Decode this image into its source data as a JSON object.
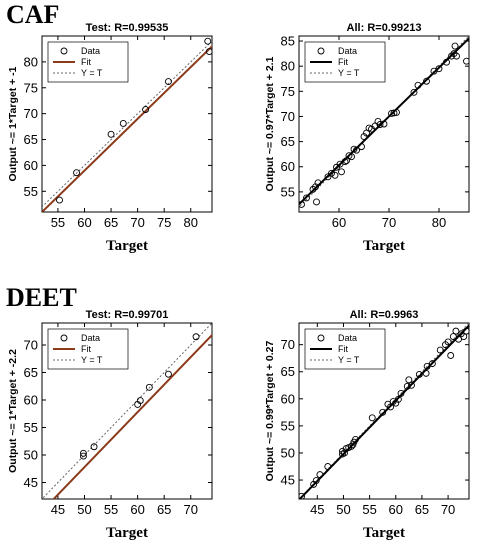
{
  "sections": [
    {
      "label": "CAF"
    },
    {
      "label": "DEET"
    }
  ],
  "chart_data": [
    {
      "type": "scatter",
      "title": "Test: R=0.99535",
      "xlabel": "Target",
      "ylabel": "Output ~= 1*Target + -1",
      "xlim": [
        52,
        84
      ],
      "ylim": [
        51,
        85
      ],
      "xticks": [
        55,
        60,
        65,
        70,
        75,
        80
      ],
      "yticks": [
        55,
        60,
        65,
        70,
        75,
        80
      ],
      "fit_color": "#8B3A1A",
      "fit": {
        "slope": 1,
        "intercept": -1
      },
      "legend": [
        "Data",
        "Fit",
        "Y = T"
      ],
      "points": [
        [
          55.3,
          53.3
        ],
        [
          58.5,
          58.6
        ],
        [
          65.0,
          66.0
        ],
        [
          67.3,
          68.1
        ],
        [
          71.5,
          70.8
        ],
        [
          75.8,
          76.2
        ],
        [
          83.2,
          84.0
        ],
        [
          83.5,
          82.0
        ]
      ]
    },
    {
      "type": "scatter",
      "title": "All: R=0.99213",
      "xlabel": "Target",
      "ylabel": "Output ~= 0.97*Target + 2.1",
      "xlim": [
        52,
        86
      ],
      "ylim": [
        51,
        86
      ],
      "xticks": [
        60,
        70,
        80
      ],
      "yticks": [
        55,
        60,
        65,
        70,
        75,
        80,
        85
      ],
      "fit_color": "#000000",
      "fit": {
        "slope": 0.97,
        "intercept": 2.1
      },
      "legend": [
        "Data",
        "Fit",
        "Y = T"
      ],
      "points": [
        [
          52.5,
          52.5
        ],
        [
          53.5,
          53.8
        ],
        [
          54.8,
          55.5
        ],
        [
          55.5,
          53.0
        ],
        [
          55.3,
          56.0
        ],
        [
          55.8,
          56.8
        ],
        [
          57.8,
          58.0
        ],
        [
          58.5,
          58.7
        ],
        [
          59.2,
          58.3
        ],
        [
          59.5,
          59.9
        ],
        [
          60.2,
          60.5
        ],
        [
          60.5,
          59.0
        ],
        [
          61.2,
          61.0
        ],
        [
          61.5,
          61.2
        ],
        [
          62.0,
          62.2
        ],
        [
          62.5,
          62.0
        ],
        [
          63.0,
          63.5
        ],
        [
          63.5,
          63.3
        ],
        [
          64.5,
          64.0
        ],
        [
          65.0,
          66.0
        ],
        [
          65.5,
          66.7
        ],
        [
          66.0,
          67.7
        ],
        [
          66.5,
          67.5
        ],
        [
          67.2,
          68.1
        ],
        [
          67.8,
          69.0
        ],
        [
          68.2,
          68.4
        ],
        [
          69.0,
          68.5
        ],
        [
          70.5,
          70.6
        ],
        [
          71.0,
          70.7
        ],
        [
          71.5,
          70.8
        ],
        [
          75.0,
          74.8
        ],
        [
          75.8,
          76.2
        ],
        [
          77.5,
          77.0
        ],
        [
          79.0,
          79.0
        ],
        [
          80.0,
          79.5
        ],
        [
          81.5,
          80.8
        ],
        [
          82.5,
          82.0
        ],
        [
          83.0,
          82.5
        ],
        [
          83.2,
          84.0
        ],
        [
          83.5,
          82.0
        ],
        [
          85.5,
          81.0
        ]
      ]
    },
    {
      "type": "scatter",
      "title": "Test: R=0.99701",
      "xlabel": "Target",
      "ylabel": "Output ~= 1*Target + -2.2",
      "xlim": [
        42,
        74
      ],
      "ylim": [
        42,
        74
      ],
      "xticks": [
        45,
        50,
        55,
        60,
        65,
        70
      ],
      "yticks": [
        45,
        50,
        55,
        60,
        65,
        70
      ],
      "fit_color": "#8B3A1A",
      "fit": {
        "slope": 1,
        "intercept": -2.2
      },
      "legend": [
        "Data",
        "Fit",
        "Y = T"
      ],
      "points": [
        [
          49.8,
          49.8
        ],
        [
          49.8,
          50.3
        ],
        [
          51.8,
          51.5
        ],
        [
          60.0,
          59.2
        ],
        [
          60.5,
          59.9
        ],
        [
          62.2,
          62.3
        ],
        [
          65.8,
          64.7
        ],
        [
          71.0,
          71.5
        ]
      ]
    },
    {
      "type": "scatter",
      "title": "All: R=0.9963",
      "xlabel": "Target",
      "ylabel": "Output ~= 0.99*Target + 0.27",
      "xlim": [
        41.5,
        74
      ],
      "ylim": [
        41.5,
        74
      ],
      "xticks": [
        45,
        50,
        55,
        60,
        65,
        70
      ],
      "yticks": [
        45,
        50,
        55,
        60,
        65,
        70
      ],
      "fit_color": "#000000",
      "fit": {
        "slope": 0.99,
        "intercept": 0.27
      },
      "legend": [
        "Data",
        "Fit",
        "Y = T"
      ],
      "points": [
        [
          42.0,
          42.0
        ],
        [
          44.3,
          44.2
        ],
        [
          44.8,
          44.9
        ],
        [
          45.5,
          46.0
        ],
        [
          47.0,
          47.5
        ],
        [
          49.8,
          49.8
        ],
        [
          49.8,
          50.3
        ],
        [
          50.2,
          50.0
        ],
        [
          50.5,
          50.8
        ],
        [
          51.0,
          51.0
        ],
        [
          51.5,
          51.2
        ],
        [
          51.8,
          51.5
        ],
        [
          52.0,
          52.0
        ],
        [
          52.3,
          52.5
        ],
        [
          55.5,
          56.5
        ],
        [
          57.5,
          57.5
        ],
        [
          58.5,
          59.0
        ],
        [
          59.0,
          58.5
        ],
        [
          59.5,
          59.5
        ],
        [
          60.0,
          59.2
        ],
        [
          60.5,
          59.9
        ],
        [
          61.0,
          61.0
        ],
        [
          62.2,
          62.3
        ],
        [
          62.5,
          63.5
        ],
        [
          63.0,
          62.5
        ],
        [
          64.5,
          64.5
        ],
        [
          65.8,
          64.7
        ],
        [
          66.0,
          66.0
        ],
        [
          67.0,
          66.5
        ],
        [
          68.5,
          69.0
        ],
        [
          69.5,
          70.0
        ],
        [
          70.0,
          70.5
        ],
        [
          70.5,
          68.0
        ],
        [
          71.0,
          71.5
        ],
        [
          71.5,
          72.5
        ],
        [
          72.0,
          71.0
        ],
        [
          72.5,
          72.0
        ],
        [
          73.0,
          71.5
        ],
        [
          73.5,
          72.5
        ]
      ]
    }
  ]
}
